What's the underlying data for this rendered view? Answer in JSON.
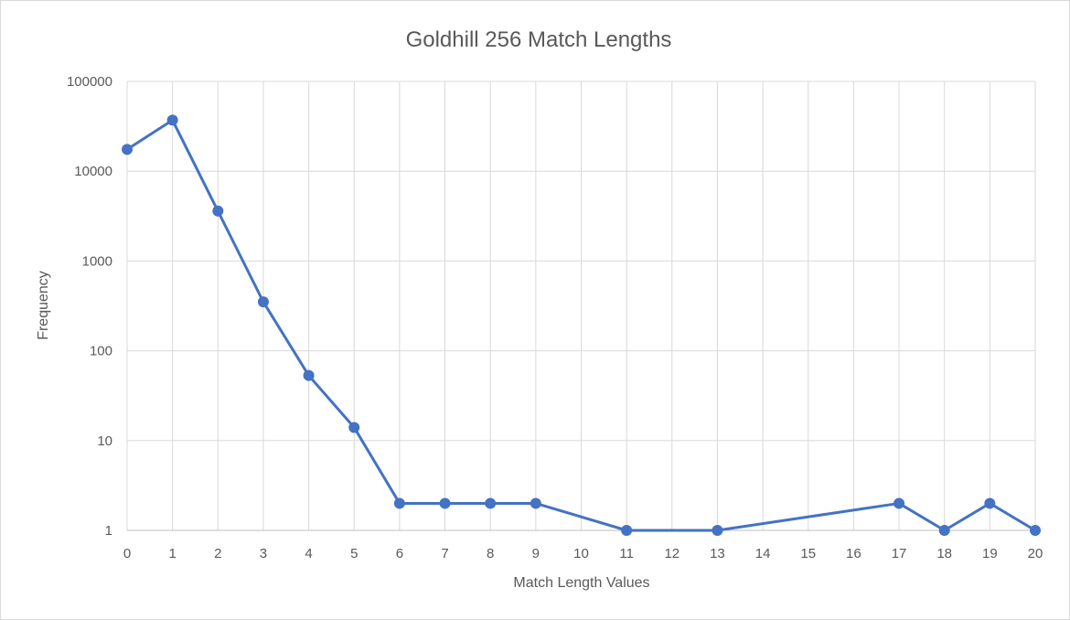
{
  "chart_data": {
    "type": "line",
    "title": "Goldhill 256 Match Lengths",
    "xlabel": "Match Length Values",
    "ylabel": "Frequency",
    "yscale": "log",
    "ylim": [
      1,
      100000
    ],
    "y_ticks": [
      "1",
      "10",
      "100",
      "1000",
      "10000",
      "100000"
    ],
    "categories": [
      "0",
      "1",
      "2",
      "3",
      "4",
      "5",
      "6",
      "7",
      "8",
      "9",
      "10",
      "11",
      "12",
      "13",
      "14",
      "15",
      "16",
      "17",
      "18",
      "19",
      "20"
    ],
    "series": [
      {
        "name": "Frequency",
        "color": "#4472c4",
        "points": [
          {
            "x": "0",
            "y": 17500
          },
          {
            "x": "1",
            "y": 37000
          },
          {
            "x": "2",
            "y": 3600
          },
          {
            "x": "3",
            "y": 350
          },
          {
            "x": "4",
            "y": 53
          },
          {
            "x": "5",
            "y": 14
          },
          {
            "x": "6",
            "y": 2
          },
          {
            "x": "7",
            "y": 2
          },
          {
            "x": "8",
            "y": 2
          },
          {
            "x": "9",
            "y": 2
          },
          {
            "x": "11",
            "y": 1
          },
          {
            "x": "13",
            "y": 1
          },
          {
            "x": "17",
            "y": 2
          },
          {
            "x": "18",
            "y": 1
          },
          {
            "x": "19",
            "y": 2
          },
          {
            "x": "20",
            "y": 1
          }
        ]
      }
    ],
    "grid": true,
    "legend": "none"
  }
}
